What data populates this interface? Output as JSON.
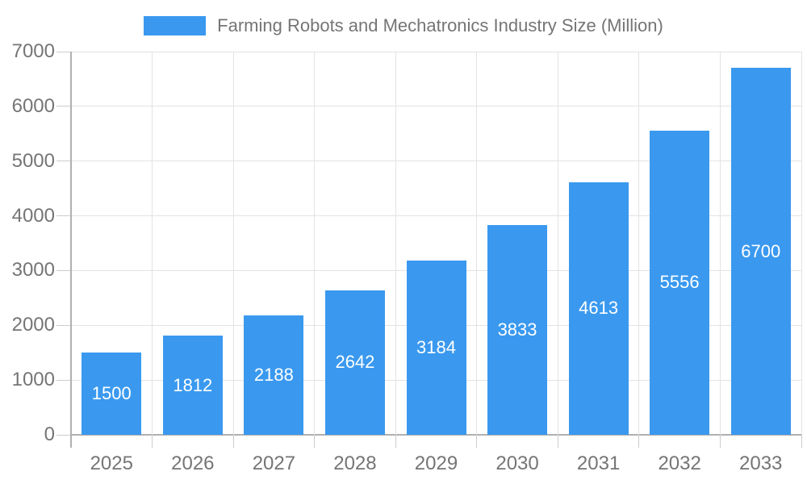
{
  "legend": {
    "label": "Farming Robots and Mechatronics Industry Size (Million)",
    "swatch_color": "#3A99EF"
  },
  "chart_data": {
    "type": "bar",
    "title": "Farming Robots and Mechatronics Industry Size (Million)",
    "categories": [
      "2025",
      "2026",
      "2027",
      "2028",
      "2029",
      "2030",
      "2031",
      "2032",
      "2033"
    ],
    "values": [
      1500,
      1812,
      2188,
      2642,
      3184,
      3833,
      4613,
      5556,
      6700
    ],
    "xlabel": "",
    "ylabel": "",
    "ylim": [
      0,
      7000
    ],
    "yticks": [
      0,
      1000,
      2000,
      3000,
      4000,
      5000,
      6000,
      7000
    ],
    "grid": true,
    "legend_position": "top",
    "value_labels": "centered-in-bar",
    "bar_color": "#3A99EF",
    "value_label_color": "#ffffff",
    "axis_color": "#b0b0b0",
    "gridline_color": "#e3e3e3",
    "tick_color": "#cccccc",
    "text_color": "#757575"
  }
}
